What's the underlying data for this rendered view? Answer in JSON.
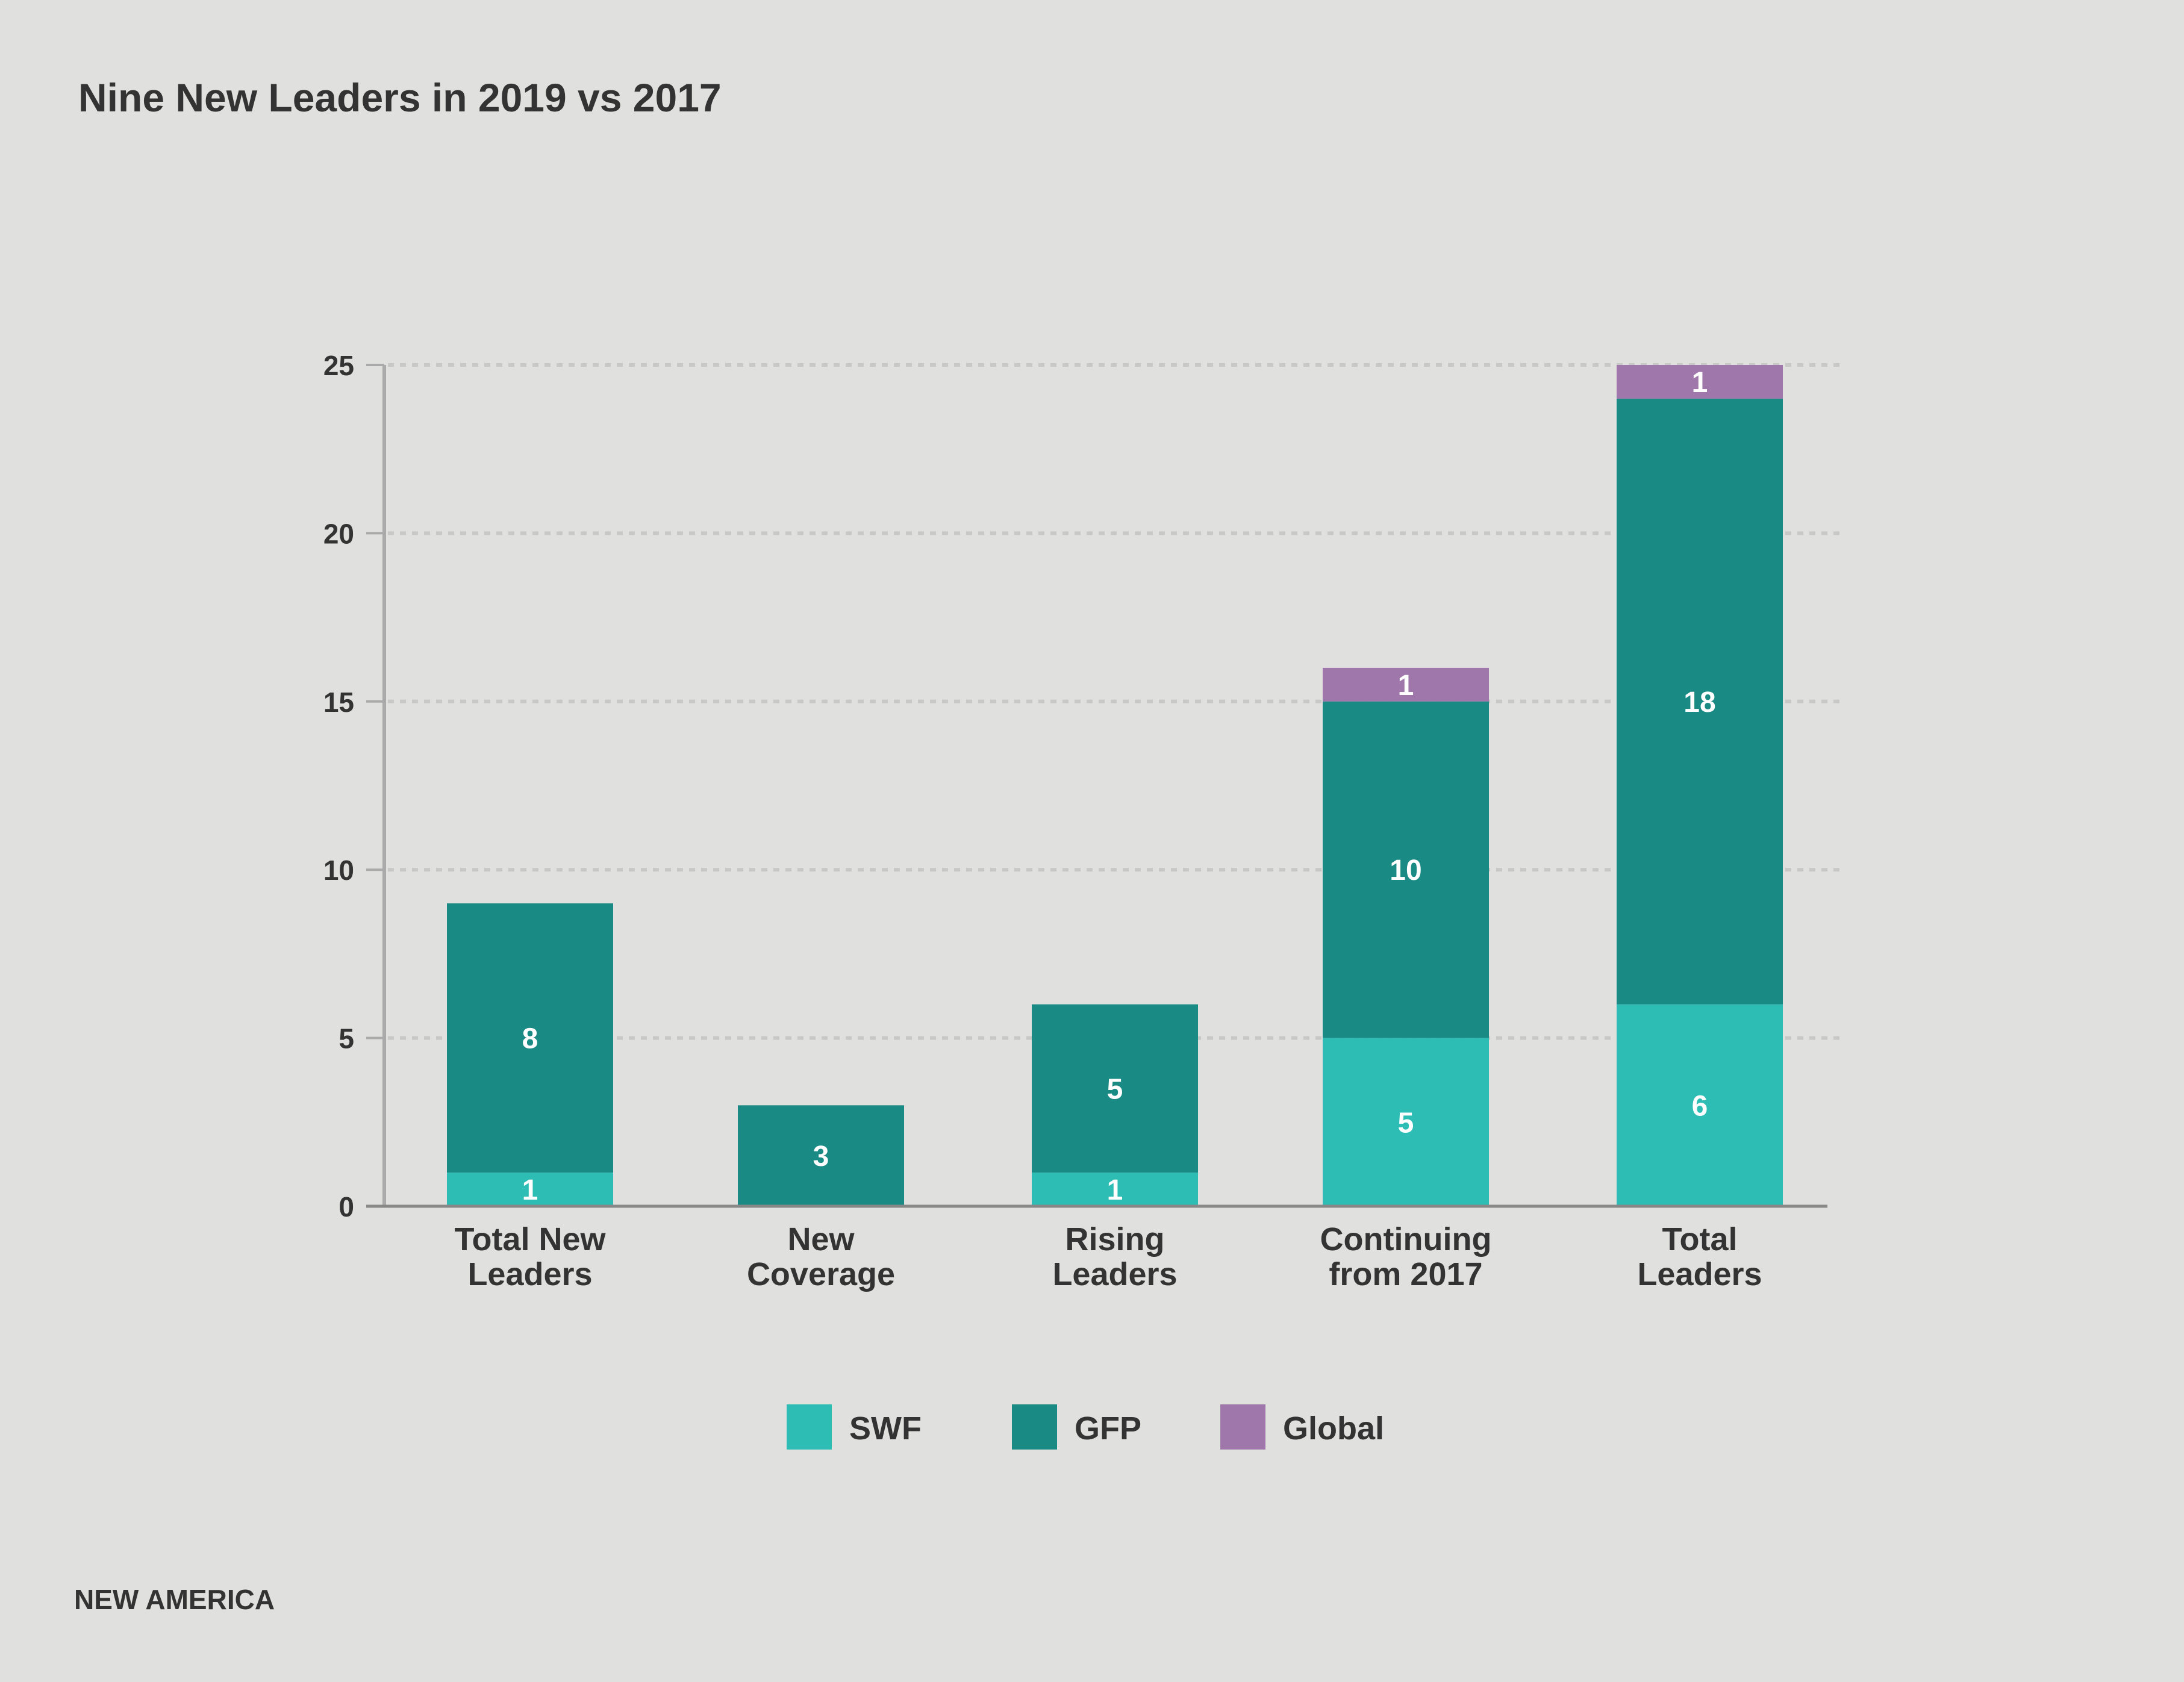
{
  "chart_data": {
    "type": "bar",
    "stacked": true,
    "title": "Nine New Leaders in 2019 vs 2017",
    "xlabel": "",
    "ylabel": "",
    "ylim": [
      0,
      25
    ],
    "yticks": [
      0,
      5,
      10,
      15,
      20,
      25
    ],
    "grid": true,
    "legend_position": "bottom",
    "categories": [
      [
        "Total New",
        "Leaders"
      ],
      [
        "New",
        "Coverage"
      ],
      [
        "Rising",
        "Leaders"
      ],
      [
        "Continuing",
        "from 2017"
      ],
      [
        "Total",
        "Leaders"
      ]
    ],
    "series": [
      {
        "name": "SWF",
        "color": "#2ebdb4",
        "values": [
          1,
          0,
          1,
          5,
          6
        ]
      },
      {
        "name": "GFP",
        "color": "#1a8a84",
        "values": [
          8,
          3,
          5,
          10,
          18
        ]
      },
      {
        "name": "Global",
        "color": "#a077aa",
        "values": [
          0,
          0,
          0,
          1,
          1
        ]
      }
    ]
  },
  "footer": "NEW AMERICA",
  "colors": {
    "background": "#e0e0de",
    "text": "#333333",
    "grid": "#c8c8c6",
    "axis": "#999999"
  }
}
